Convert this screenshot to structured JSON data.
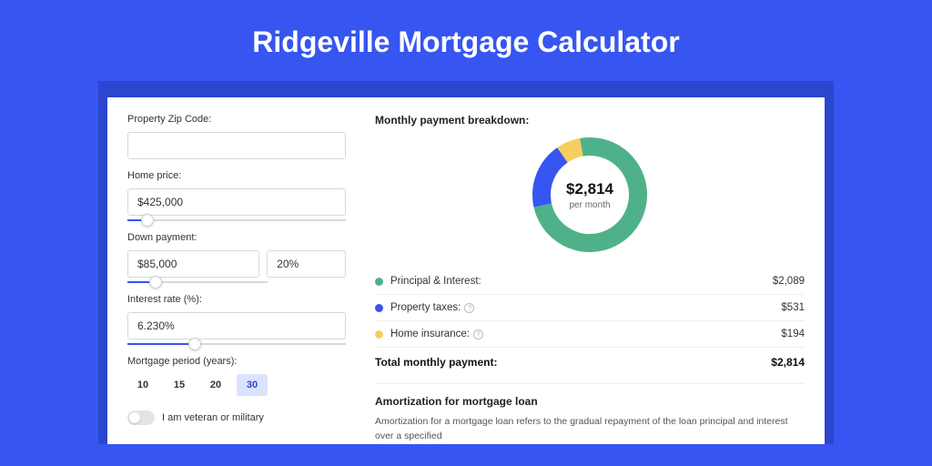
{
  "page": {
    "title": "Ridgeville Mortgage Calculator",
    "bg_color": "#3755f0",
    "band_color": "#2b46cf",
    "card_bg": "#ffffff"
  },
  "form": {
    "zip": {
      "label": "Property Zip Code:",
      "value": ""
    },
    "home_price": {
      "label": "Home price:",
      "value": "$425,000",
      "slider_pct": 9
    },
    "down_payment": {
      "label": "Down payment:",
      "amount": "$85,000",
      "pct": "20%",
      "slider_pct": 20
    },
    "interest_rate": {
      "label": "Interest rate (%):",
      "value": "6.230%",
      "slider_pct": 31
    },
    "period": {
      "label": "Mortgage period (years):",
      "options": [
        "10",
        "15",
        "20",
        "30"
      ],
      "selected": "30"
    },
    "veteran": {
      "label": "I am veteran or military",
      "on": false
    }
  },
  "breakdown": {
    "title": "Monthly payment breakdown:",
    "center_amount": "$2,814",
    "center_sub": "per month",
    "donut": {
      "size": 126,
      "thickness": 20,
      "slices": [
        {
          "key": "pi",
          "color": "#4fb18a",
          "pct": 74.2
        },
        {
          "key": "tax",
          "color": "#3755f0",
          "pct": 18.9
        },
        {
          "key": "ins",
          "color": "#f4cf5d",
          "pct": 6.9
        }
      ]
    },
    "items": [
      {
        "key": "pi",
        "color": "#4fb18a",
        "label": "Principal & Interest:",
        "value": "$2,089",
        "info": false
      },
      {
        "key": "tax",
        "color": "#3755f0",
        "label": "Property taxes:",
        "value": "$531",
        "info": true
      },
      {
        "key": "ins",
        "color": "#f4cf5d",
        "label": "Home insurance:",
        "value": "$194",
        "info": true
      }
    ],
    "total": {
      "label": "Total monthly payment:",
      "value": "$2,814"
    }
  },
  "amortization": {
    "title": "Amortization for mortgage loan",
    "text": "Amortization for a mortgage loan refers to the gradual repayment of the loan principal and interest over a specified"
  }
}
